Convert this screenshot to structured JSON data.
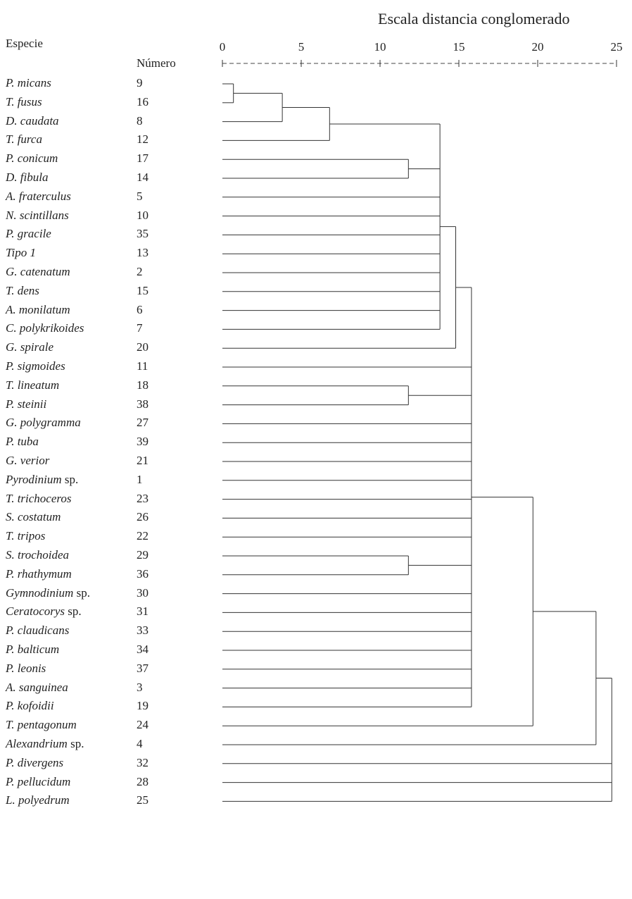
{
  "chart_data": {
    "type": "dendrogram",
    "title": "Escala distancia conglomerado",
    "species_header": "Especie",
    "number_header": "Número",
    "axis": {
      "ticks": [
        0,
        5,
        10,
        15,
        20,
        25
      ],
      "range": [
        0,
        25
      ],
      "dashes": "+---------+---------+---------+---------+---------+"
    },
    "leaves": [
      {
        "name": "P. micans",
        "number": "9"
      },
      {
        "name": "T. fusus",
        "number": "16"
      },
      {
        "name": "D. caudata",
        "number": "8"
      },
      {
        "name": "T. furca",
        "number": "12"
      },
      {
        "name": "P. conicum",
        "number": "17"
      },
      {
        "name": "D. fibula",
        "number": "14"
      },
      {
        "name": "A. fraterculus",
        "number": "5"
      },
      {
        "name": "N. scintillans",
        "number": "10"
      },
      {
        "name": "P. gracile",
        "number": "35"
      },
      {
        "name": "Tipo 1",
        "number": "13"
      },
      {
        "name": "G. catenatum",
        "number": "2"
      },
      {
        "name": "T. dens",
        "number": "15"
      },
      {
        "name": "A. monilatum",
        "number": "6"
      },
      {
        "name": "C. polykrikoides",
        "number": "7"
      },
      {
        "name": "G. spirale",
        "number": "20"
      },
      {
        "name": "P. sigmoides",
        "number": "11"
      },
      {
        "name": "T. lineatum",
        "number": "18"
      },
      {
        "name": "P. steinii",
        "number": "38"
      },
      {
        "name": "G. polygramma",
        "number": "27"
      },
      {
        "name": "P. tuba",
        "number": "39"
      },
      {
        "name": "G. verior",
        "number": "21"
      },
      {
        "name": "Pyrodinium sp.",
        "number": "1"
      },
      {
        "name": "T. trichoceros",
        "number": "23"
      },
      {
        "name": "S. costatum",
        "number": "26"
      },
      {
        "name": "T. tripos",
        "number": "22"
      },
      {
        "name": "S. trochoidea",
        "number": "29"
      },
      {
        "name": "P. rhathymum",
        "number": "36"
      },
      {
        "name": "Gymnodinium sp.",
        "number": "30"
      },
      {
        "name": "Ceratocorys sp.",
        "number": "31"
      },
      {
        "name": "P. claudicans",
        "number": "33"
      },
      {
        "name": "P. balticum",
        "number": "34"
      },
      {
        "name": "P. leonis",
        "number": "37"
      },
      {
        "name": "A. sanguinea",
        "number": "3"
      },
      {
        "name": "P. kofoidii",
        "number": "19"
      },
      {
        "name": "T. pentagonum",
        "number": "24"
      },
      {
        "name": "Alexandrium sp.",
        "number": "4"
      },
      {
        "name": "P. divergens",
        "number": "32"
      },
      {
        "name": "P. pellucidum",
        "number": "28"
      },
      {
        "name": "L. polyedrum",
        "number": "25"
      }
    ],
    "merges": [
      {
        "members": [
          0,
          1
        ],
        "distance": 0.7
      },
      {
        "members": [
          "m0",
          2
        ],
        "distance": 3.8
      },
      {
        "members": [
          "m1",
          3
        ],
        "distance": 6.8
      },
      {
        "members": [
          4,
          5
        ],
        "distance": 11.8
      },
      {
        "members": [
          "m2",
          "m3",
          6,
          7,
          8,
          9,
          10,
          11,
          12,
          13
        ],
        "distance": 13.8
      },
      {
        "members": [
          "m4",
          14
        ],
        "distance": 14.8
      },
      {
        "members": [
          16,
          17
        ],
        "distance": 11.8
      },
      {
        "members": [
          25,
          26
        ],
        "distance": 11.8
      },
      {
        "members": [
          "m5",
          15,
          "m6",
          18,
          19,
          20,
          21,
          22,
          23,
          24,
          "m7",
          27,
          28,
          29,
          30,
          31,
          32,
          33
        ],
        "distance": 15.8
      },
      {
        "members": [
          "m8",
          34
        ],
        "distance": 19.7
      },
      {
        "members": [
          "m9",
          35
        ],
        "distance": 23.7
      },
      {
        "members": [
          "m10",
          36,
          37,
          38
        ],
        "distance": 24.7
      }
    ]
  }
}
